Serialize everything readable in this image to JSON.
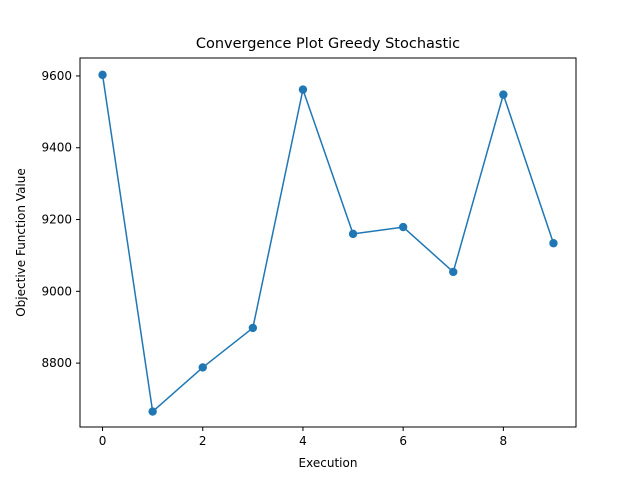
{
  "chart_data": {
    "type": "line",
    "title": "Convergence Plot Greedy Stochastic",
    "xlabel": "Execution",
    "ylabel": "Objective Function Value",
    "x": [
      0,
      1,
      2,
      3,
      4,
      5,
      6,
      7,
      8,
      9
    ],
    "series": [
      {
        "values": [
          9603,
          8665,
          8788,
          8898,
          9562,
          9160,
          9179,
          9054,
          9548,
          9134
        ],
        "color": "#1f77b4",
        "marker": "circle"
      }
    ],
    "xlim": [
      -0.45,
      9.45
    ],
    "ylim": [
      8622,
      9650
    ],
    "xticks": [
      "0",
      "2",
      "4",
      "6",
      "8"
    ],
    "yticks": [
      "8800",
      "9000",
      "9200",
      "9400",
      "9600"
    ],
    "grid": false,
    "legend": "none"
  }
}
